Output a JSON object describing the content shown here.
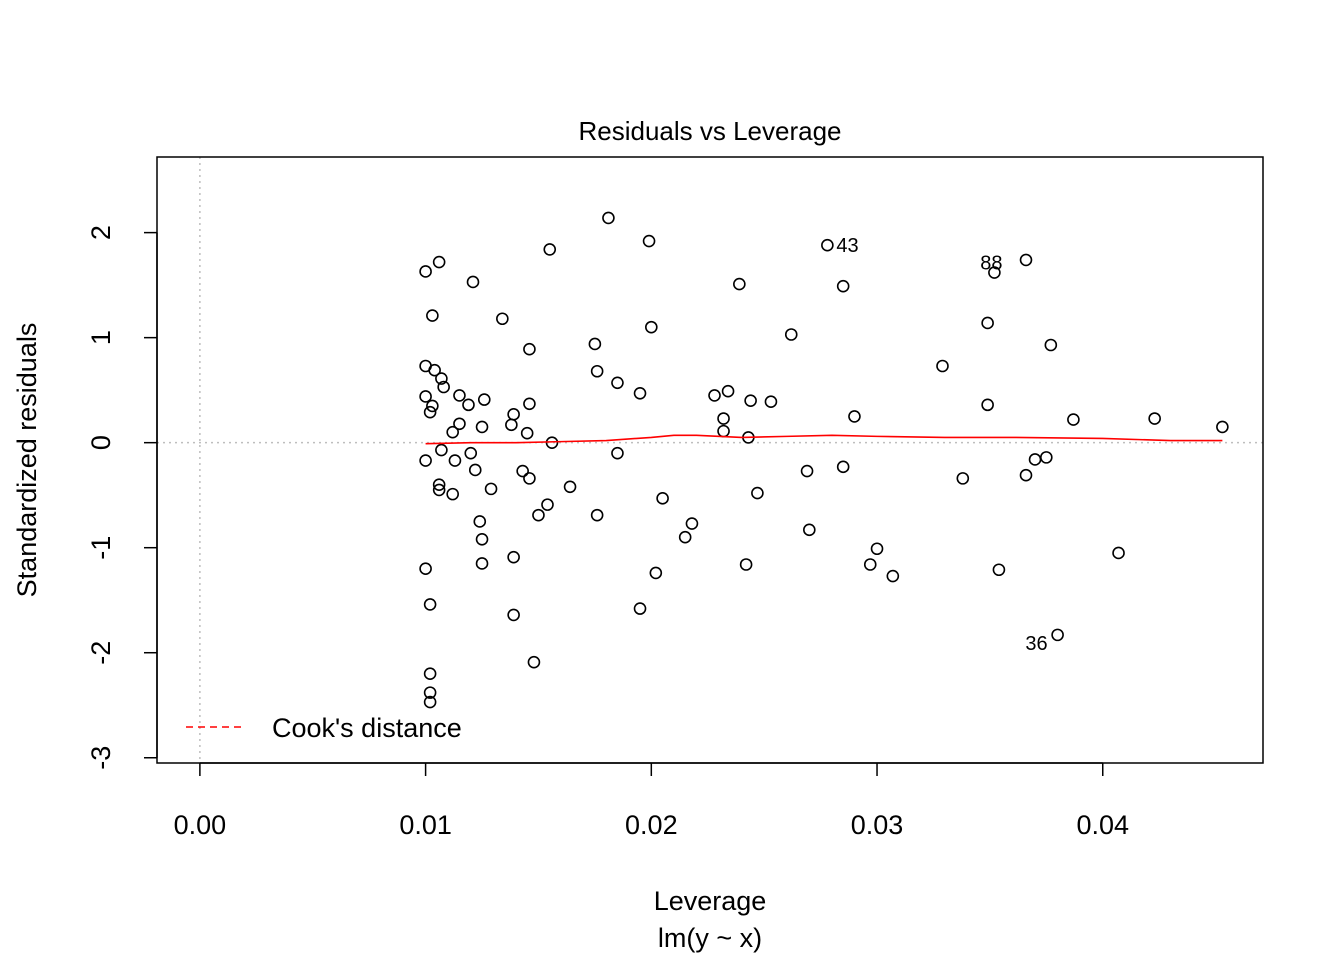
{
  "chart_data": {
    "type": "scatter",
    "title": "Residuals vs Leverage",
    "xlabel": "Leverage",
    "subtitle": "lm(y ~ x)",
    "ylabel": "Standardized residuals",
    "xlim": [
      -0.0019,
      0.0471
    ],
    "ylim": [
      -3.05,
      2.72
    ],
    "x_ticks": [
      {
        "value": 0.0,
        "label": "0.00"
      },
      {
        "value": 0.01,
        "label": "0.01"
      },
      {
        "value": 0.02,
        "label": "0.02"
      },
      {
        "value": 0.03,
        "label": "0.03"
      },
      {
        "value": 0.04,
        "label": "0.04"
      }
    ],
    "y_ticks": [
      {
        "value": 2,
        "label": "2"
      },
      {
        "value": 1,
        "label": "1"
      },
      {
        "value": 0,
        "label": "0"
      },
      {
        "value": -1,
        "label": "-1"
      },
      {
        "value": -2,
        "label": "-2"
      },
      {
        "value": -3,
        "label": "-3"
      }
    ],
    "reference_lines": {
      "x": 0,
      "y": 0
    },
    "points": [
      {
        "x": 0.01,
        "y": 1.63
      },
      {
        "x": 0.0106,
        "y": 1.72
      },
      {
        "x": 0.0103,
        "y": 1.21
      },
      {
        "x": 0.0121,
        "y": 1.53
      },
      {
        "x": 0.0134,
        "y": 1.18
      },
      {
        "x": 0.0181,
        "y": 2.14
      },
      {
        "x": 0.0155,
        "y": 1.84
      },
      {
        "x": 0.0199,
        "y": 1.92
      },
      {
        "x": 0.0146,
        "y": 0.89
      },
      {
        "x": 0.0175,
        "y": 0.94
      },
      {
        "x": 0.02,
        "y": 1.1
      },
      {
        "x": 0.0239,
        "y": 1.51
      },
      {
        "x": 0.0262,
        "y": 1.03
      },
      {
        "x": 0.0278,
        "y": 1.88
      },
      {
        "x": 0.0285,
        "y": 1.49
      },
      {
        "x": 0.0352,
        "y": 1.62
      },
      {
        "x": 0.0366,
        "y": 1.74
      },
      {
        "x": 0.0349,
        "y": 1.14
      },
      {
        "x": 0.0377,
        "y": 0.93
      },
      {
        "x": 0.0329,
        "y": 0.73
      },
      {
        "x": 0.01,
        "y": 0.73
      },
      {
        "x": 0.0104,
        "y": 0.69
      },
      {
        "x": 0.0107,
        "y": 0.61
      },
      {
        "x": 0.0108,
        "y": 0.53
      },
      {
        "x": 0.01,
        "y": 0.44
      },
      {
        "x": 0.0103,
        "y": 0.35
      },
      {
        "x": 0.0102,
        "y": 0.29
      },
      {
        "x": 0.0115,
        "y": 0.45
      },
      {
        "x": 0.0119,
        "y": 0.36
      },
      {
        "x": 0.0126,
        "y": 0.41
      },
      {
        "x": 0.0115,
        "y": 0.18
      },
      {
        "x": 0.0112,
        "y": 0.1
      },
      {
        "x": 0.0125,
        "y": 0.15
      },
      {
        "x": 0.0139,
        "y": 0.27
      },
      {
        "x": 0.0138,
        "y": 0.17
      },
      {
        "x": 0.0146,
        "y": 0.37
      },
      {
        "x": 0.0145,
        "y": 0.09
      },
      {
        "x": 0.0156,
        "y": 0.0
      },
      {
        "x": 0.0176,
        "y": 0.68
      },
      {
        "x": 0.0185,
        "y": 0.57
      },
      {
        "x": 0.0195,
        "y": 0.47
      },
      {
        "x": 0.0228,
        "y": 0.45
      },
      {
        "x": 0.0234,
        "y": 0.49
      },
      {
        "x": 0.0244,
        "y": 0.4
      },
      {
        "x": 0.0253,
        "y": 0.39
      },
      {
        "x": 0.0232,
        "y": 0.23
      },
      {
        "x": 0.0232,
        "y": 0.11
      },
      {
        "x": 0.0243,
        "y": 0.05
      },
      {
        "x": 0.029,
        "y": 0.25
      },
      {
        "x": 0.0349,
        "y": 0.36
      },
      {
        "x": 0.0387,
        "y": 0.22
      },
      {
        "x": 0.0423,
        "y": 0.23
      },
      {
        "x": 0.0453,
        "y": 0.15
      },
      {
        "x": 0.01,
        "y": -0.17
      },
      {
        "x": 0.0107,
        "y": -0.07
      },
      {
        "x": 0.0113,
        "y": -0.17
      },
      {
        "x": 0.012,
        "y": -0.1
      },
      {
        "x": 0.0122,
        "y": -0.26
      },
      {
        "x": 0.0106,
        "y": -0.4
      },
      {
        "x": 0.0106,
        "y": -0.45
      },
      {
        "x": 0.0112,
        "y": -0.49
      },
      {
        "x": 0.0129,
        "y": -0.44
      },
      {
        "x": 0.0143,
        "y": -0.27
      },
      {
        "x": 0.0146,
        "y": -0.34
      },
      {
        "x": 0.0164,
        "y": -0.42
      },
      {
        "x": 0.0185,
        "y": -0.1
      },
      {
        "x": 0.0205,
        "y": -0.53
      },
      {
        "x": 0.0154,
        "y": -0.59
      },
      {
        "x": 0.015,
        "y": -0.69
      },
      {
        "x": 0.0176,
        "y": -0.69
      },
      {
        "x": 0.0124,
        "y": -0.75
      },
      {
        "x": 0.0125,
        "y": -0.92
      },
      {
        "x": 0.0125,
        "y": -1.15
      },
      {
        "x": 0.0139,
        "y": -1.09
      },
      {
        "x": 0.0218,
        "y": -0.77
      },
      {
        "x": 0.0215,
        "y": -0.9
      },
      {
        "x": 0.0247,
        "y": -0.48
      },
      {
        "x": 0.0269,
        "y": -0.27
      },
      {
        "x": 0.027,
        "y": -0.83
      },
      {
        "x": 0.0285,
        "y": -0.23
      },
      {
        "x": 0.0338,
        "y": -0.34
      },
      {
        "x": 0.0366,
        "y": -0.31
      },
      {
        "x": 0.037,
        "y": -0.16
      },
      {
        "x": 0.0375,
        "y": -0.14
      },
      {
        "x": 0.01,
        "y": -1.2
      },
      {
        "x": 0.0102,
        "y": -1.54
      },
      {
        "x": 0.0139,
        "y": -1.64
      },
      {
        "x": 0.0148,
        "y": -2.09
      },
      {
        "x": 0.0195,
        "y": -1.58
      },
      {
        "x": 0.0202,
        "y": -1.24
      },
      {
        "x": 0.0242,
        "y": -1.16
      },
      {
        "x": 0.0297,
        "y": -1.16
      },
      {
        "x": 0.03,
        "y": -1.01
      },
      {
        "x": 0.0307,
        "y": -1.27
      },
      {
        "x": 0.0354,
        "y": -1.21
      },
      {
        "x": 0.0407,
        "y": -1.05
      },
      {
        "x": 0.038,
        "y": -1.83
      },
      {
        "x": 0.0102,
        "y": -2.2
      },
      {
        "x": 0.0102,
        "y": -2.38
      },
      {
        "x": 0.0102,
        "y": -2.47
      }
    ],
    "point_labels": [
      {
        "x": 0.0278,
        "y": 1.88,
        "text": "43",
        "side": "right"
      },
      {
        "x": 0.0352,
        "y": 1.62,
        "text": "88",
        "side": "top-right"
      },
      {
        "x": 0.038,
        "y": -1.83,
        "text": "36",
        "side": "left"
      }
    ],
    "smooth_line": {
      "color": "#ff0000",
      "x": [
        0.01,
        0.012,
        0.014,
        0.016,
        0.018,
        0.02,
        0.021,
        0.022,
        0.024,
        0.026,
        0.028,
        0.03,
        0.033,
        0.036,
        0.04,
        0.043,
        0.0453
      ],
      "y": [
        -0.01,
        0.0,
        0.0,
        0.01,
        0.02,
        0.05,
        0.07,
        0.07,
        0.05,
        0.06,
        0.07,
        0.06,
        0.05,
        0.05,
        0.04,
        0.02,
        0.02
      ]
    },
    "legend": {
      "placement": "bottom-left",
      "entries": [
        {
          "label": "Cook's distance",
          "color": "#ff0000",
          "style": "dashed"
        }
      ]
    },
    "grid": false
  }
}
